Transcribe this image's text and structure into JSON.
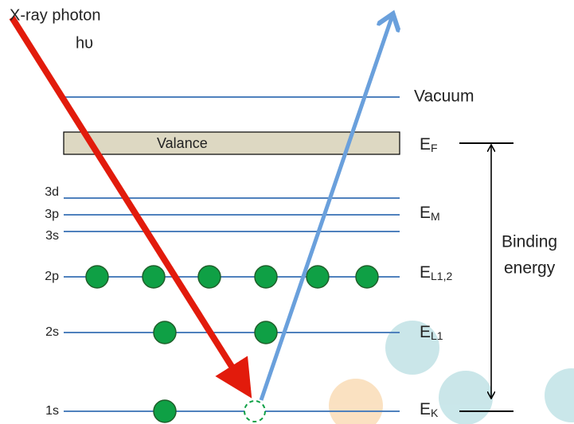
{
  "photon": {
    "label": "X-ray photon",
    "symbol": "hυ"
  },
  "levels": [
    {
      "name": "Vacuum"
    },
    {
      "name": "Valance",
      "energy": {
        "base": "E",
        "sub": "F"
      }
    },
    {
      "name": "3d"
    },
    {
      "name": "3p",
      "energy": {
        "base": "E",
        "sub": "M"
      }
    },
    {
      "name": "3s"
    },
    {
      "name": "2p",
      "energy": {
        "base": "E",
        "sub": "L1,2"
      }
    },
    {
      "name": "2s",
      "energy": {
        "base": "E",
        "sub": "L1"
      }
    },
    {
      "name": "1s",
      "energy": {
        "base": "E",
        "sub": "K"
      }
    }
  ],
  "binding_energy": [
    "Binding",
    "energy"
  ]
}
